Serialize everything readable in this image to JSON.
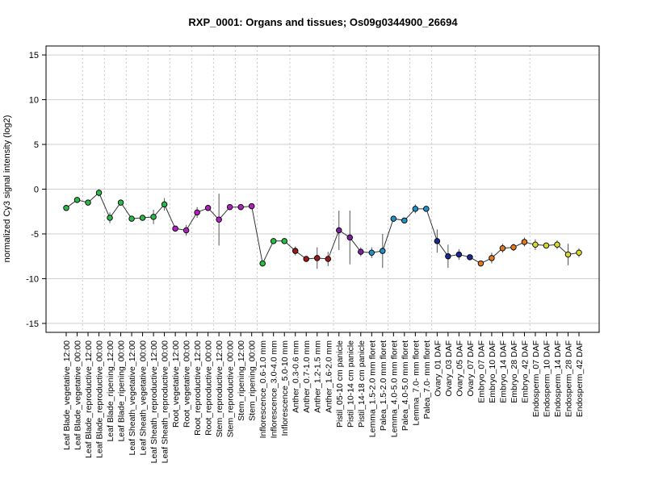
{
  "chart_data": {
    "type": "line",
    "title": "RXP_0001: Organs and tissues; Os09g0344900_26694",
    "xlabel": "",
    "ylabel": "normalized Cy3 signal intensity (log2)",
    "ylim": [
      -16,
      16
    ],
    "yticks": [
      -15,
      -10,
      -5,
      0,
      5,
      10,
      15
    ],
    "grid": true,
    "categories": [
      "Leaf Blade_vegetative_12:00",
      "Leaf Blade_vegetative_00:00",
      "Leaf Blade_reproductive_12:00",
      "Leaf Blade_reproductive_00:00",
      "Leaf Blade_ripening_12:00",
      "Leaf Blade_ripening_00:00",
      "Leaf Sheath_vegetative_12:00",
      "Leaf Sheath_vegetative_00:00",
      "Leaf Sheath_reproductive_12:00",
      "Leaf Sheath_reproductive_00:00",
      "Root_vegetative_12:00",
      "Root_vegetative_00:00",
      "Root_reproductive_12:00",
      "Root_reproductive_00:00",
      "Stem_reproductive_12:00",
      "Stem_reproductive_00:00",
      "Stem_ripening_12:00",
      "Stem_ripening_00:00",
      "Inflorescence_0.6-1.0 mm",
      "Inflorescence_3.0-4.0 mm",
      "Inflorescence_5.0-10 mm",
      "Anther_0.3-0.6 mm",
      "Anther_0.7-1.0 mm",
      "Anther_1.2-1.5 mm",
      "Anther_1.6-2.0 mm",
      "Pistil_05-10 cm panicle",
      "Pistil_10-14 cm panicle",
      "Pistil_14-18 cm panicle",
      "Lemma_1.5-2.0 mm floret",
      "Palea_1.5-2.0 mm floret",
      "Lemma_4.0-5.0 mm floret",
      "Palea_4.0-5.0 mm floret",
      "Lemma_7.0- mm floret",
      "Palea_7.0- mm floret",
      "Ovary_01 DAF",
      "Ovary_03 DAF",
      "Ovary_05 DAF",
      "Ovary_07 DAF",
      "Embryo_07 DAF",
      "Embryo_10 DAF",
      "Embryo_14 DAF",
      "Embryo_28 DAF",
      "Embryo_42 DAF",
      "Endosperm_07 DAF",
      "Endosperm_10 DAF",
      "Endosperm_14 DAF",
      "Endosperm_28 DAF",
      "Endosperm_42 DAF"
    ],
    "values": [
      -2.1,
      -1.2,
      -1.5,
      -0.4,
      -3.2,
      -1.5,
      -3.3,
      -3.2,
      -3.1,
      -1.7,
      -4.4,
      -4.6,
      -2.6,
      -2.1,
      -3.4,
      -2.0,
      -2.0,
      -1.9,
      -8.3,
      -5.8,
      -5.8,
      -6.9,
      -7.8,
      -7.7,
      -7.8,
      -4.6,
      -5.4,
      -7.0,
      -7.1,
      -6.9,
      -3.3,
      -3.5,
      -2.2,
      -2.2,
      -5.8,
      -7.5,
      -7.3,
      -7.6,
      -8.3,
      -7.7,
      -6.6,
      -6.5,
      -5.9,
      -6.2,
      -6.3,
      -6.2,
      -7.3,
      -7.1
    ],
    "errors": [
      0.2,
      0.25,
      0.2,
      0.4,
      0.6,
      0.3,
      0.2,
      0.2,
      0.8,
      0.7,
      0.2,
      0.6,
      0.6,
      0.3,
      2.9,
      0.2,
      0.2,
      0.2,
      0.3,
      0.3,
      0.3,
      0.5,
      0.2,
      1.2,
      0.8,
      2.2,
      3.0,
      0.5,
      0.6,
      1.9,
      0.3,
      0.2,
      0.5,
      0.2,
      1.3,
      1.3,
      0.6,
      0.3,
      0.2,
      0.6,
      0.5,
      0.4,
      0.5,
      0.6,
      0.3,
      0.5,
      1.2,
      0.5
    ],
    "point_colors": [
      "#2db84a",
      "#2db84a",
      "#2db84a",
      "#2db84a",
      "#2db84a",
      "#2db84a",
      "#2db84a",
      "#2db84a",
      "#2db84a",
      "#2db84a",
      "#b020c0",
      "#b020c0",
      "#b020c0",
      "#b020c0",
      "#b020c0",
      "#b020c0",
      "#b020c0",
      "#b020c0",
      "#22c040",
      "#22c040",
      "#22c040",
      "#9a1a1a",
      "#9a1a1a",
      "#9a1a1a",
      "#9a1a1a",
      "#7a20a0",
      "#7a20a0",
      "#7a20a0",
      "#2090c8",
      "#2090c8",
      "#2090c8",
      "#2090c8",
      "#2090c8",
      "#2090c8",
      "#1a2890",
      "#1a2890",
      "#1a2890",
      "#1a2890",
      "#e07a20",
      "#e07a20",
      "#e07a20",
      "#e07a20",
      "#e07a20",
      "#d8d830",
      "#d8d830",
      "#d8d830",
      "#d8d830",
      "#d8d830"
    ]
  }
}
